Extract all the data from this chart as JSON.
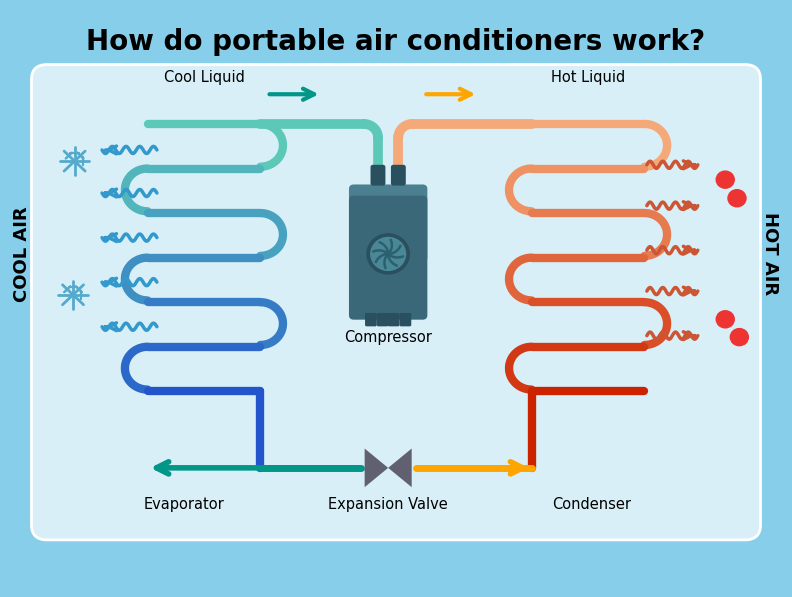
{
  "title": "How do portable air conditioners work?",
  "bg_color": "#87CEEB",
  "box_bg": "#D8EFF8",
  "evap_color_top": "#5BC8B8",
  "evap_color_bot": "#2255CC",
  "cond_color_top": "#F5A878",
  "cond_color_bot": "#CC2200",
  "cool_liquid_arrow": "#009688",
  "hot_liquid_arrow": "#FFA500",
  "cool_air_arrow": "#3399CC",
  "hot_air_arrow": "#CC5533",
  "bottom_green_arrow": "#009688",
  "bottom_orange_arrow": "#FFA500",
  "compressor_body": "#3A6878",
  "compressor_dark": "#2A5060",
  "compressor_mid": "#4A8090",
  "valve_color": "#606070",
  "label_evaporator": "Evaporator",
  "label_condenser": "Condenser",
  "label_expansion": "Expansion Valve",
  "label_compressor": "Compressor",
  "label_cool_liquid": "Cool Liquid",
  "label_hot_liquid": "Hot Liquid",
  "label_cool_air": "COOL AIR",
  "label_hot_air": "HOT AIR",
  "snowflake_color": "#55AACC",
  "heat_dot_color": "#EE3333"
}
